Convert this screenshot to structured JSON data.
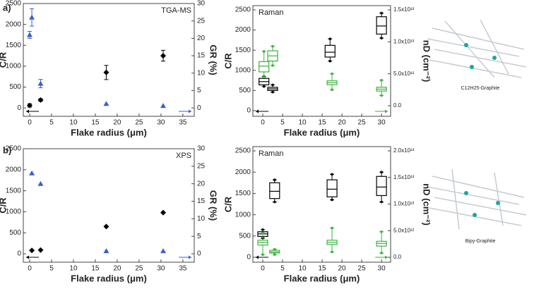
{
  "panel_labels": [
    "a)",
    "b)"
  ],
  "illustrations": [
    {
      "label": "C12H25-Graphite"
    },
    {
      "label": "Bipy-Graphite"
    }
  ],
  "chart_data": [
    {
      "type": "scatter",
      "annotation": "TGA-MS",
      "x_label": "Flake radius (μm)",
      "y_label": "C/R",
      "y2_label": "GR (%)",
      "xlim": [
        -1.45,
        37.6
      ],
      "xticks": [
        0,
        5,
        10,
        15,
        20,
        25,
        30,
        35
      ],
      "ylim": [
        -200,
        2500
      ],
      "yticks": [
        0,
        500,
        1000,
        1500,
        2000,
        2500
      ],
      "y2lim": [
        -2.4,
        30
      ],
      "y2ticks": [
        0,
        5,
        10,
        15,
        20,
        25,
        30
      ],
      "series": [
        {
          "color": "#000000",
          "marker": "diamond",
          "x": [
            0,
            2.5,
            17.5,
            30.5
          ],
          "values": [
            60,
            190,
            850,
            1250
          ],
          "errors": [
            40,
            30,
            170,
            130
          ]
        },
        {
          "color": "#3a5fcd",
          "marker": "triangle",
          "axis": "y2",
          "x": [
            0,
            0.5,
            2.5,
            17.5,
            30.5
          ],
          "values": [
            21,
            26,
            7,
            1.2,
            0.6
          ],
          "errors": [
            1,
            2.5,
            1.2,
            null,
            null
          ]
        }
      ]
    },
    {
      "type": "box",
      "annotation": "Raman",
      "x_label": "Flake radius (μm)",
      "y_label": "C/R",
      "y2_label": "nD (cm⁻²)",
      "xlim": [
        -2.5,
        32.3
      ],
      "xticks": [
        0,
        5,
        10,
        15,
        20,
        25,
        30
      ],
      "ylim": [
        -140,
        2605
      ],
      "yticks": [
        0,
        500,
        1000,
        1500,
        2000,
        2500
      ],
      "y2lim": [
        -1650000000000.0,
        15660000000000.0
      ],
      "y2ticks": [
        {
          "value": 0,
          "label": "0.0"
        },
        {
          "value": 5000000000000.0,
          "label": "5.0x10¹²"
        },
        {
          "value": 10000000000000.0,
          "label": "1.0x10¹³"
        },
        {
          "value": 15000000000000.0,
          "label": "1.5x10¹³"
        }
      ],
      "series": [
        {
          "color": "#000000",
          "x": [
            0.3,
            2.5,
            17,
            30
          ],
          "values": [
            720,
            540,
            1450,
            2100
          ],
          "q1": [
            640,
            500,
            1330,
            1900
          ],
          "q3": [
            800,
            580,
            1620,
            2330
          ],
          "min": [
            600,
            460,
            1230,
            1800
          ],
          "max": [
            850,
            640,
            1780,
            2420
          ]
        },
        {
          "color": "#3cb43c",
          "axis": "y2",
          "x": [
            0.3,
            2.5,
            17.5,
            30
          ],
          "values": [
            6200000000000.0,
            7800000000000.0,
            3600000000000.0,
            2600000000000.0
          ],
          "q1": [
            5300000000000.0,
            7000000000000.0,
            3300000000000.0,
            2300000000000.0
          ],
          "q3": [
            6900000000000.0,
            8600000000000.0,
            3900000000000.0,
            2900000000000.0
          ],
          "min": [
            4500000000000.0,
            6300000000000.0,
            2500000000000.0,
            1600000000000.0
          ],
          "max": [
            8500000000000.0,
            9300000000000.0,
            5000000000000.0,
            4000000000000.0
          ]
        }
      ]
    },
    {
      "type": "scatter",
      "annotation": "XPS",
      "x_label": "Flake radius (μm)",
      "y_label": "C/R",
      "y2_label": "GR (%)",
      "xlim": [
        -1.45,
        37.6
      ],
      "xticks": [
        0,
        5,
        10,
        15,
        20,
        25,
        30,
        35
      ],
      "ylim": [
        -200,
        2500
      ],
      "yticks": [
        0,
        500,
        1000,
        1500,
        2000,
        2500
      ],
      "y2lim": [
        -2.4,
        30
      ],
      "y2ticks": [
        0,
        5,
        10,
        15,
        20,
        25,
        30
      ],
      "series": [
        {
          "color": "#000000",
          "marker": "diamond",
          "x": [
            0.5,
            2.5,
            17.5,
            30.5
          ],
          "values": [
            80,
            90,
            650,
            980
          ]
        },
        {
          "color": "#3a5fcd",
          "marker": "triangle",
          "axis": "y2",
          "x": [
            0.5,
            2.5,
            17.5,
            30.5
          ],
          "values": [
            23,
            20,
            0.8,
            0.8
          ]
        }
      ]
    },
    {
      "type": "box",
      "annotation": "Raman",
      "x_label": "Flake radius (μm)",
      "y_label": "C/R",
      "y2_label": "nD (cm⁻²)",
      "xlim": [
        -2.5,
        32.3
      ],
      "xticks": [
        0,
        5,
        10,
        15,
        20,
        25,
        30
      ],
      "ylim": [
        -116,
        2600
      ],
      "yticks": [
        0,
        500,
        1000,
        1500,
        2000,
        2500
      ],
      "y2lim": [
        -930000000000.0,
        20800000000000.0
      ],
      "y2ticks": [
        {
          "value": 0,
          "label": "0.0"
        },
        {
          "value": 5000000000000.0,
          "label": "5.0x10¹²"
        },
        {
          "value": 10000000000000.0,
          "label": "1.0x10¹³"
        },
        {
          "value": 15000000000000.0,
          "label": "1.5x10¹³"
        },
        {
          "value": 20000000000000.0,
          "label": "2.0x10¹³"
        }
      ],
      "series": [
        {
          "color": "#000000",
          "x": [
            0,
            3,
            17.5,
            30
          ],
          "values": [
            550,
            1550,
            1600,
            1650
          ],
          "q1": [
            490,
            1380,
            1420,
            1450
          ],
          "q3": [
            600,
            1750,
            1820,
            1900
          ],
          "min": [
            450,
            1300,
            1350,
            1300
          ],
          "max": [
            650,
            1820,
            1950,
            2000
          ]
        },
        {
          "color": "#3cb43c",
          "axis": "y2",
          "x": [
            0,
            3,
            17.5,
            30
          ],
          "values": [
            2800000000000.0,
            1000000000000.0,
            2800000000000.0,
            2600000000000.0
          ],
          "q1": [
            2300000000000.0,
            800000000000.0,
            2400000000000.0,
            2100000000000.0
          ],
          "q3": [
            3200000000000.0,
            1300000000000.0,
            3200000000000.0,
            3000000000000.0
          ],
          "min": [
            500000000000.0,
            500000000000.0,
            1000000000000.0,
            800000000000.0
          ],
          "max": [
            4500000000000.0,
            1500000000000.0,
            5500000000000.0,
            4800000000000.0
          ]
        }
      ]
    }
  ]
}
